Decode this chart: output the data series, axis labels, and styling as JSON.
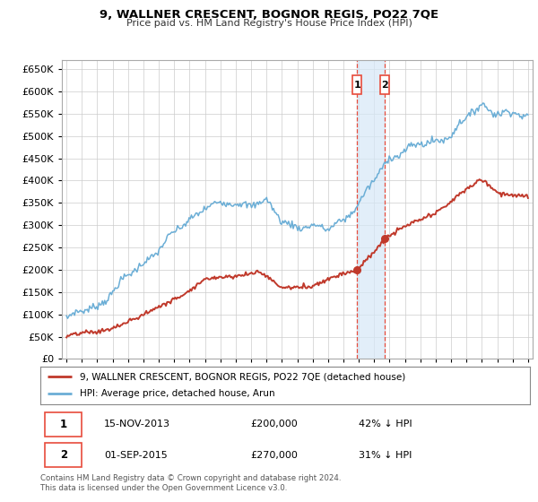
{
  "title": "9, WALLNER CRESCENT, BOGNOR REGIS, PO22 7QE",
  "subtitle": "Price paid vs. HM Land Registry's House Price Index (HPI)",
  "ylim": [
    0,
    670000
  ],
  "yticks": [
    0,
    50000,
    100000,
    150000,
    200000,
    250000,
    300000,
    350000,
    400000,
    450000,
    500000,
    550000,
    600000,
    650000
  ],
  "hpi_color": "#6baed6",
  "price_color": "#c0392b",
  "vline_color": "#e74c3c",
  "shade_color": "#d6e8f7",
  "background_color": "#ffffff",
  "grid_color": "#cccccc",
  "transaction1_date": 2013.88,
  "transaction1_price": 200000,
  "transaction2_date": 2015.67,
  "transaction2_price": 270000,
  "legend_property": "9, WALLNER CRESCENT, BOGNOR REGIS, PO22 7QE (detached house)",
  "legend_hpi": "HPI: Average price, detached house, Arun",
  "footer1": "Contains HM Land Registry data © Crown copyright and database right 2024.",
  "footer2": "This data is licensed under the Open Government Licence v3.0.",
  "xlim_left": 1994.7,
  "xlim_right": 2025.3
}
